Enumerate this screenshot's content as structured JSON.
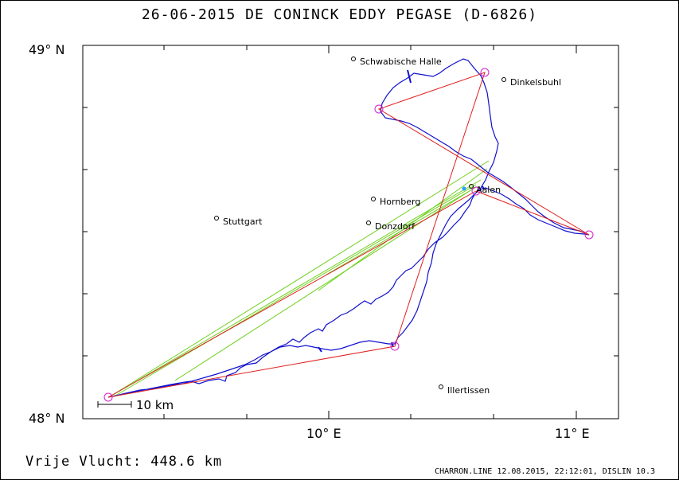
{
  "header": {
    "title": "26-06-2015   DE CONINCK EDDY   PEGASE (D-6826)"
  },
  "axes": {
    "lat_top_label": "49° N",
    "lat_bottom_label": "48° N",
    "lon_label_1": "10° E",
    "lon_label_2": "11° E"
  },
  "scale": {
    "label": "10 km"
  },
  "places": [
    {
      "name": "Schwabische Halle",
      "label": "Schwabische Halle"
    },
    {
      "name": "Dinkelsbuhl",
      "label": "Dinkelsbuhl"
    },
    {
      "name": "Aalen",
      "label": "Aalen"
    },
    {
      "name": "Hornberg",
      "label": "Hornberg"
    },
    {
      "name": "Stuttgart",
      "label": "Stuttgart"
    },
    {
      "name": "Donzdorf",
      "label": "Donzdorf"
    },
    {
      "name": "Illertissen",
      "label": "Illertissen"
    }
  ],
  "footer": {
    "distance": "Vrije Vlucht:  448.6 km",
    "credit": "CHARRON.LINE 12.08.2015, 22:12:01, DISLIN 10.3"
  },
  "colors": {
    "track": "#1010d0",
    "task": "#e02020",
    "sector": "#70d020",
    "turnpoint": "#d020d0"
  }
}
